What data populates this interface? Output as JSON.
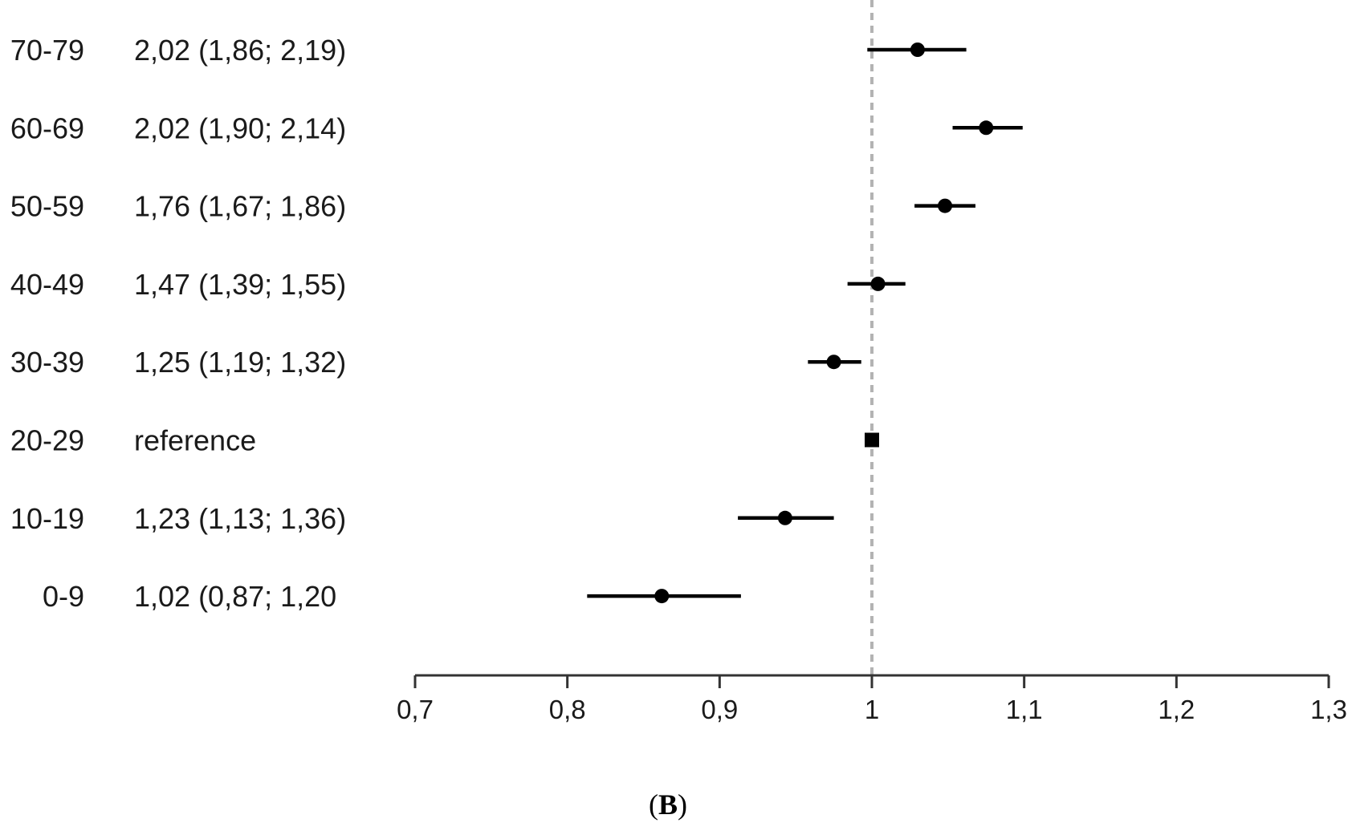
{
  "chart_data": {
    "type": "scatter",
    "subtype": "forest-plot",
    "title": "",
    "xlabel": "",
    "ylabel": "",
    "xlim": [
      0.7,
      1.3
    ],
    "reference_line": 1,
    "reference_line_style": "dashed",
    "reference_line_color": "#b3b3b3",
    "x_ticks": [
      "0,7",
      "0,8",
      "0,9",
      "1",
      "1,1",
      "1,2",
      "1,3"
    ],
    "x_tick_values": [
      0.7,
      0.8,
      0.9,
      1.0,
      1.1,
      1.2,
      1.3
    ],
    "grid": false,
    "rows": [
      {
        "group": "70-79",
        "estimate_text": "2,02 (1,86; 2,19)",
        "point": 1.03,
        "ci": [
          0.997,
          1.062
        ],
        "marker": "circle"
      },
      {
        "group": "60-69",
        "estimate_text": "2,02 (1,90; 2,14)",
        "point": 1.075,
        "ci": [
          1.053,
          1.099
        ],
        "marker": "circle"
      },
      {
        "group": "50-59",
        "estimate_text": "1,76 (1,67; 1,86)",
        "point": 1.048,
        "ci": [
          1.028,
          1.068
        ],
        "marker": "circle"
      },
      {
        "group": "40-49",
        "estimate_text": "1,47 (1,39; 1,55)",
        "point": 1.004,
        "ci": [
          0.984,
          1.022
        ],
        "marker": "circle"
      },
      {
        "group": "30-39",
        "estimate_text": "1,25 (1,19; 1,32)",
        "point": 0.975,
        "ci": [
          0.958,
          0.993
        ],
        "marker": "circle"
      },
      {
        "group": "20-29",
        "estimate_text": "reference",
        "point": 1.0,
        "ci": null,
        "marker": "square"
      },
      {
        "group": "10-19",
        "estimate_text": "1,23 (1,13; 1,36)",
        "point": 0.943,
        "ci": [
          0.912,
          0.975
        ],
        "marker": "circle"
      },
      {
        "group": "0-9",
        "estimate_text": "1,02 (0,87; 1,20",
        "point": 0.862,
        "ci": [
          0.813,
          0.914
        ],
        "marker": "circle"
      }
    ],
    "colors": {
      "marks": "#000000",
      "axis": "#333333",
      "text": "#1a1a1a"
    }
  },
  "panel": {
    "open": "(",
    "letter": "B",
    "close": ")"
  }
}
